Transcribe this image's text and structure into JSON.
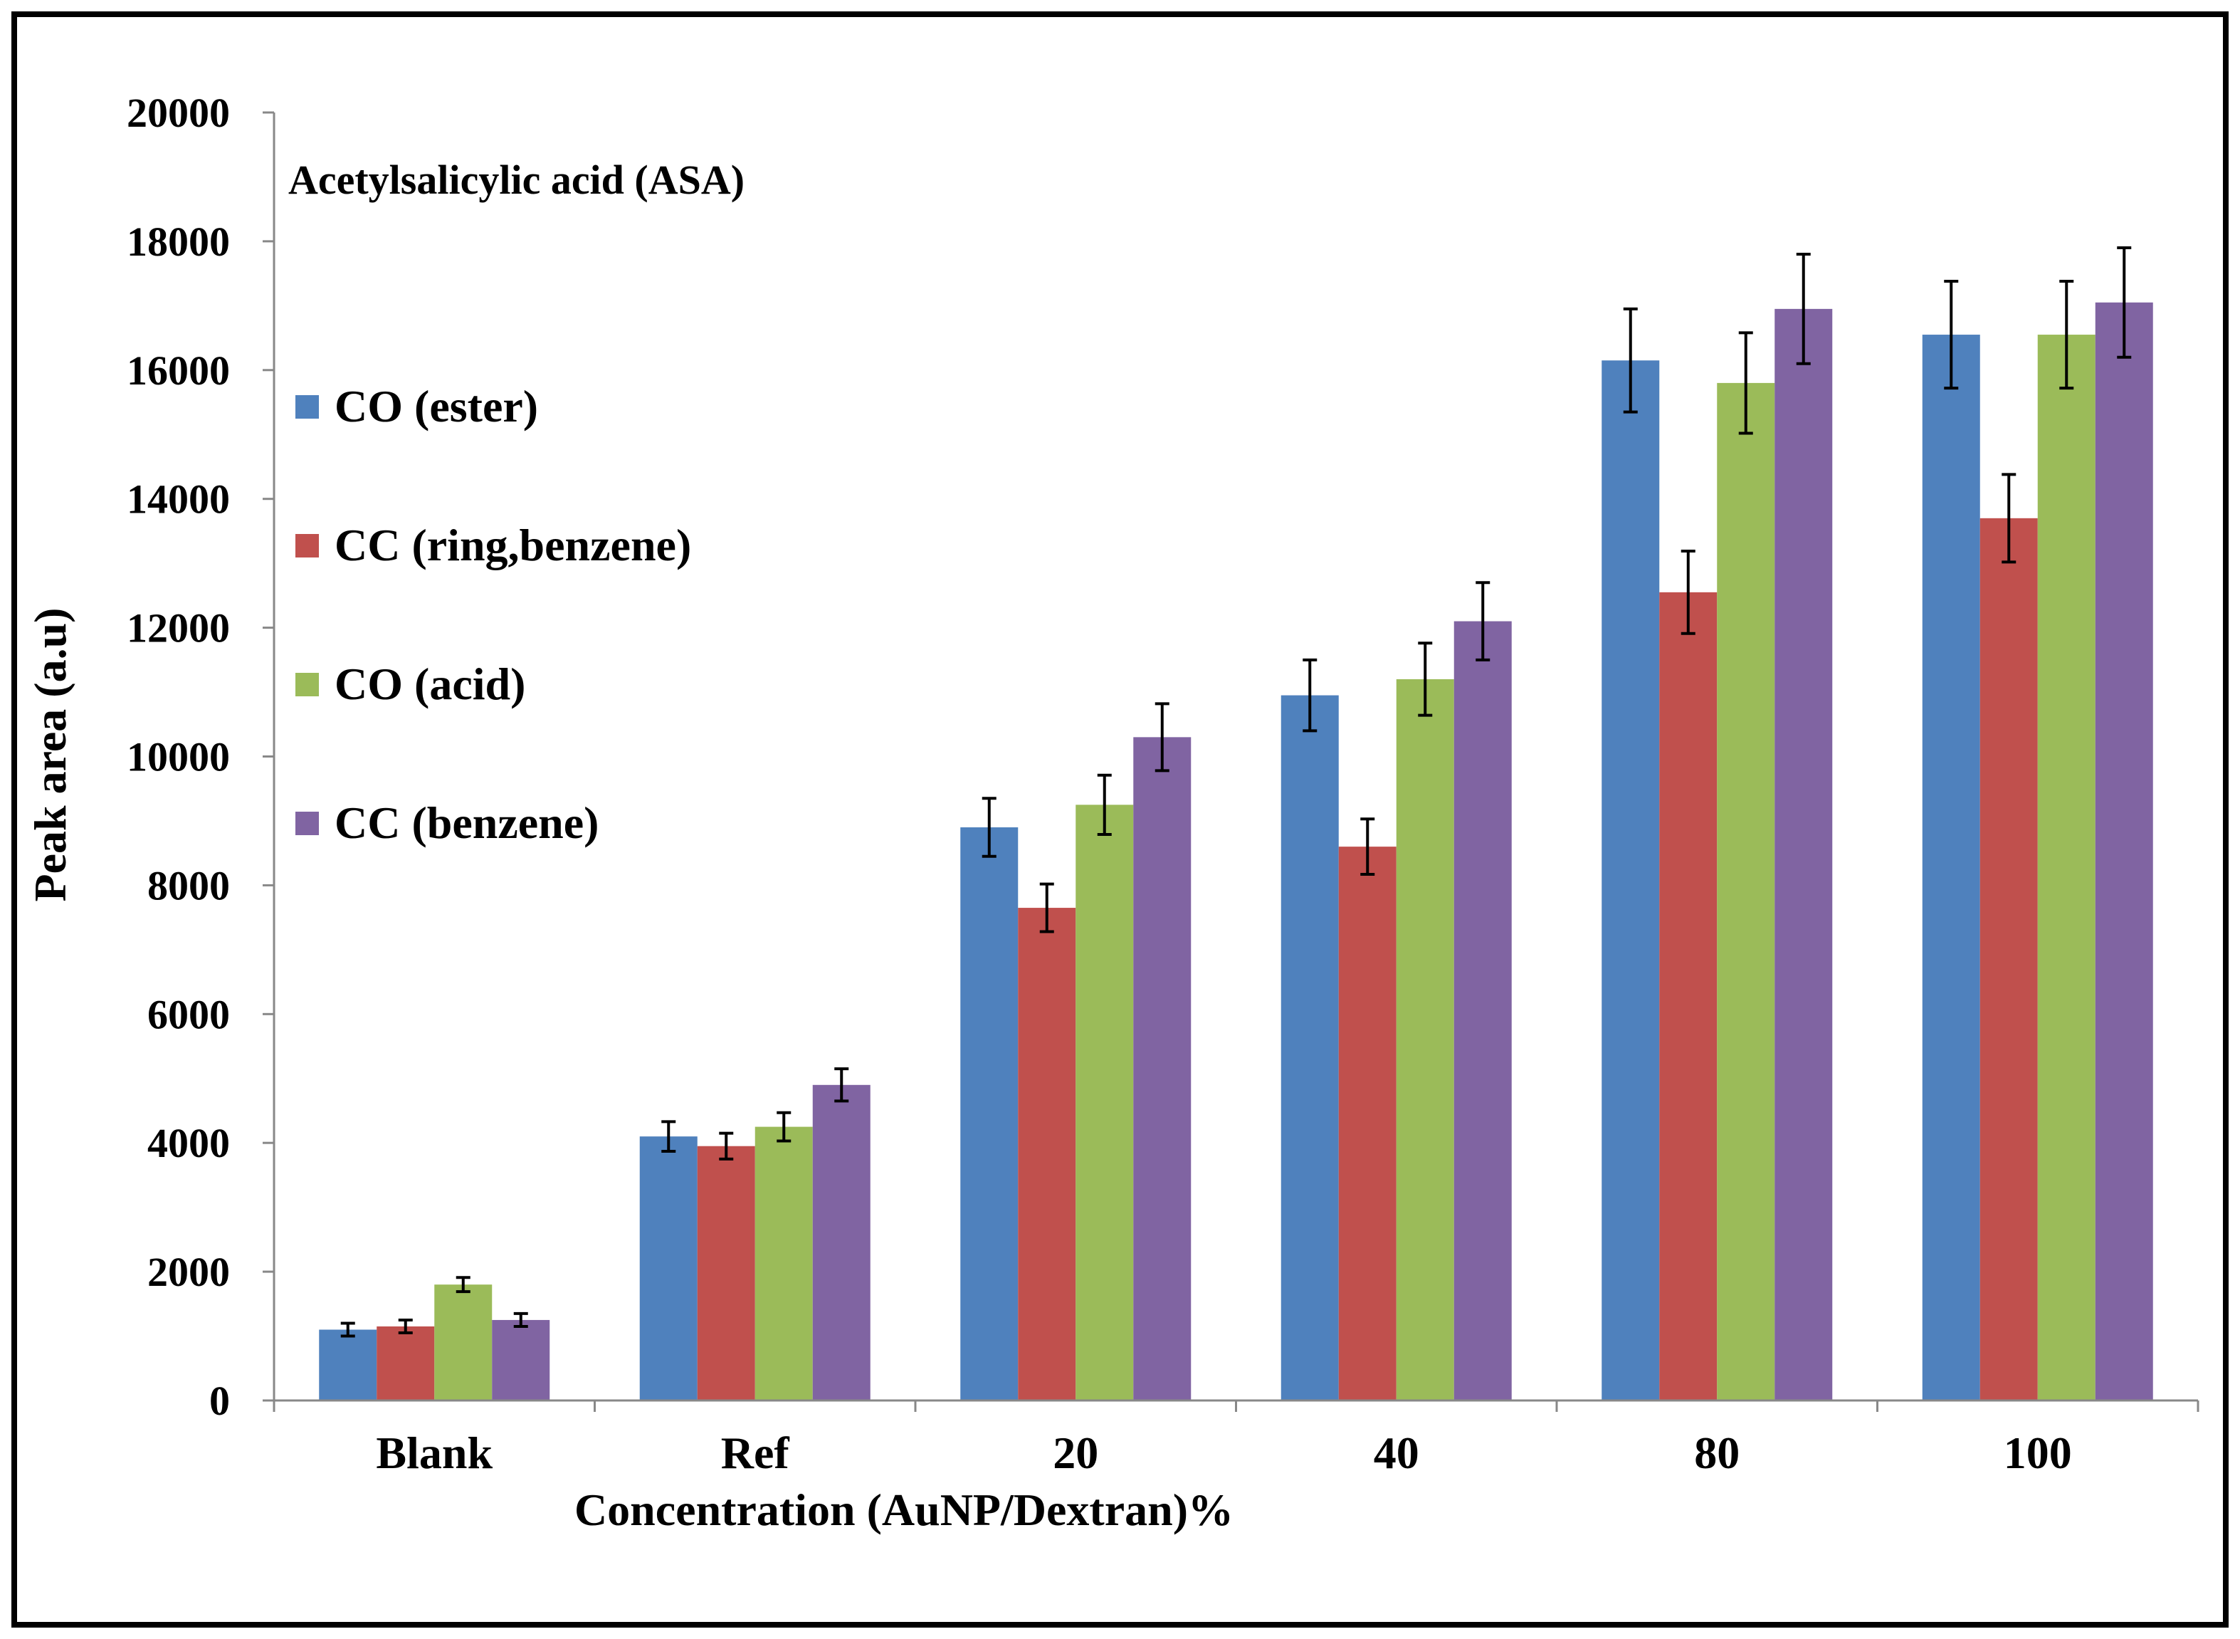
{
  "chart_data": {
    "type": "bar",
    "title": "",
    "annotation": "Acetylsalicylic acid (ASA)",
    "xlabel": "Concentration (AuNP/Dextran)%",
    "ylabel": "Peak area (a.u)",
    "ylim": [
      0,
      20000
    ],
    "yticks": [
      0,
      2000,
      4000,
      6000,
      8000,
      10000,
      12000,
      14000,
      16000,
      18000,
      20000
    ],
    "grid": false,
    "legend_position": "left",
    "categories": [
      "Blank",
      "Ref",
      "20",
      "40",
      "80",
      "100"
    ],
    "series": [
      {
        "name": "CO (ester)",
        "color": "#4f81bd",
        "values": [
          1100,
          4100,
          8900,
          10950,
          16150,
          16550
        ],
        "errors": [
          100,
          230,
          450,
          550,
          800,
          830
        ]
      },
      {
        "name": "CC (ring,benzene)",
        "color": "#c0504d",
        "values": [
          1150,
          3950,
          7650,
          8600,
          12550,
          13700
        ],
        "errors": [
          100,
          200,
          370,
          430,
          640,
          680
        ]
      },
      {
        "name": "CO (acid)",
        "color": "#9bbb59",
        "values": [
          1800,
          4250,
          9250,
          11200,
          15800,
          16550
        ],
        "errors": [
          110,
          220,
          460,
          560,
          780,
          830
        ]
      },
      {
        "name": "CC (benzene)",
        "color": "#8064a2",
        "values": [
          1250,
          4900,
          10300,
          12100,
          16950,
          17050
        ],
        "errors": [
          100,
          250,
          520,
          600,
          850,
          850
        ]
      }
    ]
  }
}
